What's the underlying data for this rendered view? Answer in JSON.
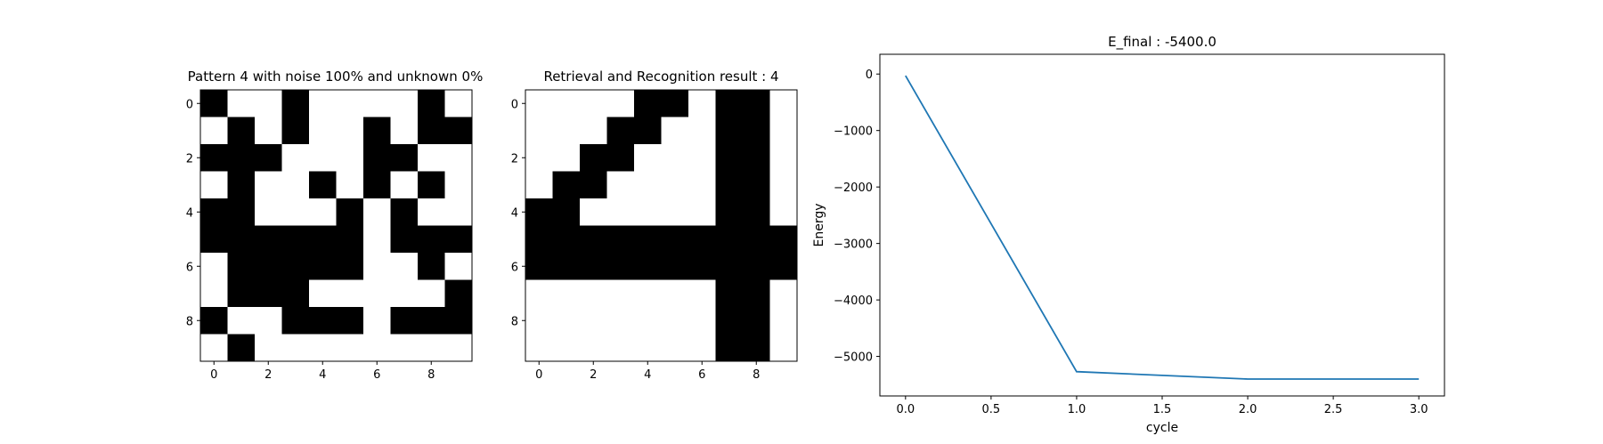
{
  "chart_data": [
    {
      "type": "heatmap",
      "title": "Pattern 4 with noise 100% and unknown 0%",
      "xticks": [
        "0",
        "2",
        "4",
        "6",
        "8"
      ],
      "yticks": [
        "0",
        "2",
        "4",
        "6",
        "8"
      ],
      "colormap": [
        "#ffffff",
        "#000000"
      ],
      "grid": [
        [
          1,
          0,
          0,
          1,
          0,
          0,
          0,
          0,
          1,
          0
        ],
        [
          0,
          1,
          0,
          1,
          0,
          0,
          1,
          0,
          1,
          1
        ],
        [
          1,
          1,
          1,
          0,
          0,
          0,
          1,
          1,
          0,
          0
        ],
        [
          0,
          1,
          0,
          0,
          1,
          0,
          1,
          0,
          1,
          0
        ],
        [
          1,
          1,
          0,
          0,
          0,
          1,
          0,
          1,
          0,
          0
        ],
        [
          1,
          1,
          1,
          1,
          1,
          1,
          0,
          1,
          1,
          1
        ],
        [
          0,
          1,
          1,
          1,
          1,
          1,
          0,
          0,
          1,
          0
        ],
        [
          0,
          1,
          1,
          1,
          0,
          0,
          0,
          0,
          0,
          1
        ],
        [
          1,
          0,
          0,
          1,
          1,
          1,
          0,
          1,
          1,
          1
        ],
        [
          0,
          1,
          0,
          0,
          0,
          0,
          0,
          0,
          0,
          0
        ]
      ]
    },
    {
      "type": "heatmap",
      "title": "Retrieval and Recognition result : 4",
      "xticks": [
        "0",
        "2",
        "4",
        "6",
        "8"
      ],
      "yticks": [
        "0",
        "2",
        "4",
        "6",
        "8"
      ],
      "colormap": [
        "#ffffff",
        "#000000"
      ],
      "grid": [
        [
          0,
          0,
          0,
          0,
          1,
          1,
          0,
          1,
          1,
          0
        ],
        [
          0,
          0,
          0,
          1,
          1,
          0,
          0,
          1,
          1,
          0
        ],
        [
          0,
          0,
          1,
          1,
          0,
          0,
          0,
          1,
          1,
          0
        ],
        [
          0,
          1,
          1,
          0,
          0,
          0,
          0,
          1,
          1,
          0
        ],
        [
          1,
          1,
          0,
          0,
          0,
          0,
          0,
          1,
          1,
          0
        ],
        [
          1,
          1,
          1,
          1,
          1,
          1,
          1,
          1,
          1,
          1
        ],
        [
          1,
          1,
          1,
          1,
          1,
          1,
          1,
          1,
          1,
          1
        ],
        [
          0,
          0,
          0,
          0,
          0,
          0,
          0,
          1,
          1,
          0
        ],
        [
          0,
          0,
          0,
          0,
          0,
          0,
          0,
          1,
          1,
          0
        ],
        [
          0,
          0,
          0,
          0,
          0,
          0,
          0,
          1,
          1,
          0
        ]
      ]
    },
    {
      "type": "line",
      "title": "E_final : -5400.0",
      "xlabel": "cycle",
      "ylabel": "Energy",
      "xlim": [
        -0.15,
        3.15
      ],
      "ylim": [
        -5700,
        350
      ],
      "xticks": [
        0.0,
        0.5,
        1.0,
        1.5,
        2.0,
        2.5,
        3.0
      ],
      "xtick_labels": [
        "0.0",
        "0.5",
        "1.0",
        "1.5",
        "2.0",
        "2.5",
        "3.0"
      ],
      "yticks": [
        0,
        -1000,
        -2000,
        -3000,
        -4000,
        -5000
      ],
      "ytick_labels": [
        "0",
        "−1000",
        "−2000",
        "−3000",
        "−4000",
        "−5000"
      ],
      "color": "#1f77b4",
      "x": [
        0,
        1,
        2,
        3
      ],
      "y": [
        -30,
        -5270,
        -5400,
        -5400
      ]
    }
  ]
}
